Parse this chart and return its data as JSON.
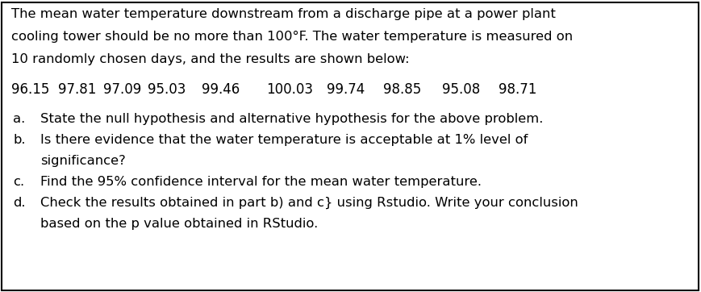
{
  "para_lines": [
    "The mean water temperature downstream from a discharge pipe at a power plant",
    "cooling tower should be no more than 100°F. The water temperature is measured on",
    "10 randomly chosen days, and the results are shown below:"
  ],
  "data_values": [
    "96.15",
    "97.81",
    "97.09",
    "95.03",
    "99.46",
    "100.03",
    "99.74",
    "98.85",
    "95.08",
    "98.71"
  ],
  "items": [
    {
      "label": "a.",
      "lines": [
        "State the null hypothesis and alternative hypothesis for the above problem."
      ]
    },
    {
      "label": "b.",
      "lines": [
        "Is there evidence that the water temperature is acceptable at 1% level of",
        "significance?"
      ]
    },
    {
      "label": "c.",
      "lines": [
        "Find the 95% confidence interval for the mean water temperature."
      ]
    },
    {
      "label": "d.",
      "lines": [
        "Check the results obtained in part b) and c} using Rstudio. Write your conclusion",
        "based on the p value obtained in RStudio."
      ]
    }
  ],
  "bg_color": "#ffffff",
  "border_color": "#000000",
  "text_color": "#000000",
  "font_size": 11.8,
  "data_font_size": 12.0
}
